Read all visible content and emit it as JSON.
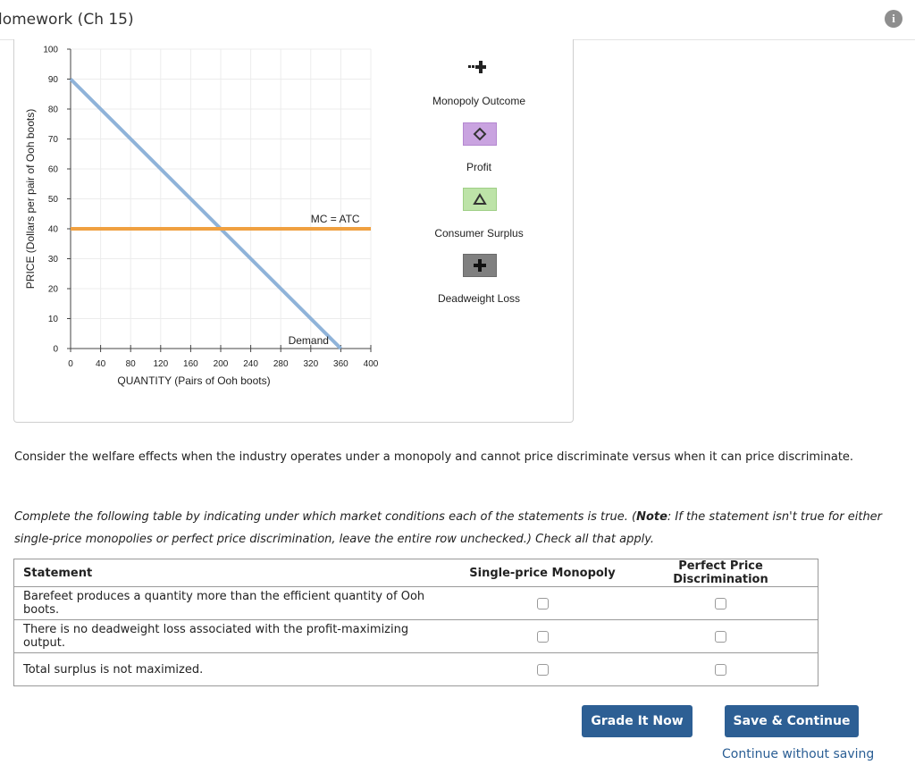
{
  "header": {
    "title": "lomework (Ch 15)",
    "info_icon": "i"
  },
  "graph": {
    "ylabel": "PRICE (Dollars per pair of Ooh boots)",
    "xlabel": "QUANTITY (Pairs of Ooh boots)",
    "y_ticks": [
      "0",
      "10",
      "20",
      "30",
      "40",
      "50",
      "60",
      "70",
      "80",
      "90",
      "100"
    ],
    "x_ticks": [
      "0",
      "40",
      "80",
      "120",
      "160",
      "200",
      "240",
      "280",
      "320",
      "360",
      "400"
    ],
    "mc_label": "MC = ATC",
    "demand_label": "Demand",
    "demand_color": "#8fb3d9",
    "mc_color": "#f0a040"
  },
  "chart_data": {
    "type": "line",
    "xlabel": "QUANTITY (Pairs of Ooh boots)",
    "ylabel": "PRICE (Dollars per pair of Ooh boots)",
    "xlim": [
      0,
      400
    ],
    "ylim": [
      0,
      100
    ],
    "grid": true,
    "series": [
      {
        "name": "Demand",
        "x": [
          0,
          360
        ],
        "y": [
          90,
          0
        ]
      },
      {
        "name": "MC = ATC",
        "x": [
          0,
          400
        ],
        "y": [
          40,
          40
        ]
      }
    ]
  },
  "legend_tools": [
    {
      "label": "Monopoly Outcome",
      "icon": "cross-icon",
      "color": "#222222"
    },
    {
      "label": "Profit",
      "icon": "diamond-icon",
      "color": "#c9a3e0"
    },
    {
      "label": "Consumer Surplus",
      "icon": "triangle-icon",
      "color": "#bde3a8"
    },
    {
      "label": "Deadweight Loss",
      "icon": "plus-icon",
      "color": "#808080"
    }
  ],
  "prompt": "Consider the welfare effects when the industry operates under a monopoly and cannot price discriminate versus when it can price discriminate.",
  "instructions": {
    "part1": "Complete the following table by indicating under which market conditions each of the statements is true. (",
    "note_label": "Note",
    "part2": ": If the statement isn't true for either single-price monopolies or perfect price discrimination, leave the entire row unchecked.) Check all that apply."
  },
  "table": {
    "headers": [
      "Statement",
      "Single-price Monopoly",
      "Perfect Price Discrimination"
    ],
    "rows": [
      {
        "statement": "Barefeet produces a quantity more than the efficient quantity of Ooh boots."
      },
      {
        "statement": "There is no deadweight loss associated with the profit-maximizing output."
      },
      {
        "statement": "Total surplus is not maximized."
      }
    ]
  },
  "buttons": {
    "grade": "Grade It Now",
    "save": "Save & Continue",
    "continue_link": "Continue without saving"
  }
}
